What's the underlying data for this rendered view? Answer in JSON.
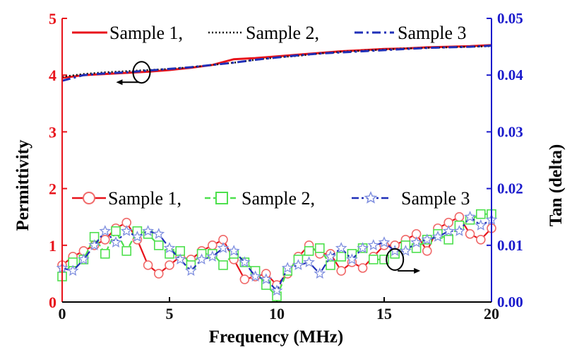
{
  "chart_data": {
    "type": "line",
    "title": "",
    "xlabel": "Frequency (MHz)",
    "ylabel_left": "Permittivity",
    "ylabel_right": "Tan (delta)",
    "xlim": [
      0,
      20
    ],
    "ylim_left": [
      0,
      5
    ],
    "ylim_right": [
      0,
      0.05
    ],
    "x_ticks": [
      "0",
      "5",
      "10",
      "15",
      "20"
    ],
    "y_left_ticks": [
      "0",
      "1",
      "2",
      "3",
      "4",
      "5"
    ],
    "y_right_ticks": [
      "0.00",
      "0.01",
      "0.02",
      "0.03",
      "0.04",
      "0.05"
    ],
    "grid": false,
    "colors": {
      "left_axis": "#e8131b",
      "right_axis": "#1a1acc",
      "sample1": "#e8131b",
      "sample2_perm": "#111111",
      "sample2_tan": "#4ee04e",
      "sample3": "#1f2fb8"
    },
    "permittivity_series": [
      {
        "name": "Sample 1",
        "x": [
          0,
          1,
          2,
          3,
          4,
          5,
          6,
          7,
          8,
          9,
          10,
          11,
          12,
          13,
          14,
          15,
          16,
          17,
          18,
          19,
          20
        ],
        "values": [
          3.95,
          4.0,
          4.02,
          4.04,
          4.06,
          4.09,
          4.13,
          4.18,
          4.28,
          4.3,
          4.33,
          4.36,
          4.39,
          4.42,
          4.44,
          4.46,
          4.47,
          4.49,
          4.5,
          4.51,
          4.53
        ]
      },
      {
        "name": "Sample 2",
        "x": [
          0,
          1,
          2,
          3,
          4,
          5,
          6,
          7,
          8,
          9,
          10,
          11,
          12,
          13,
          14,
          15,
          16,
          17,
          18,
          19,
          20
        ],
        "values": [
          3.97,
          4.02,
          4.05,
          4.07,
          4.09,
          4.11,
          4.14,
          4.18,
          4.22,
          4.27,
          4.31,
          4.34,
          4.38,
          4.41,
          4.43,
          4.45,
          4.47,
          4.48,
          4.49,
          4.5,
          4.51
        ]
      },
      {
        "name": "Sample 3",
        "x": [
          0,
          1,
          2,
          3,
          4,
          5,
          6,
          7,
          8,
          9,
          10,
          11,
          12,
          13,
          14,
          15,
          16,
          17,
          18,
          19,
          20
        ],
        "values": [
          3.9,
          4.0,
          4.03,
          4.05,
          4.08,
          4.11,
          4.14,
          4.18,
          4.22,
          4.27,
          4.31,
          4.35,
          4.38,
          4.4,
          4.42,
          4.44,
          4.46,
          4.48,
          4.49,
          4.5,
          4.52
        ]
      }
    ],
    "tan_series": [
      {
        "name": "Sample 1",
        "x": [
          0,
          0.5,
          1,
          1.5,
          2,
          2.5,
          3,
          3.5,
          4,
          4.5,
          5,
          5.5,
          6,
          6.5,
          7,
          7.5,
          8,
          8.5,
          9,
          9.5,
          10,
          10.5,
          11,
          11.5,
          12,
          12.5,
          13,
          13.5,
          14,
          14.5,
          15,
          15.5,
          16,
          16.5,
          17,
          17.5,
          18,
          18.5,
          19,
          19.5,
          20
        ],
        "values": [
          0.0065,
          0.008,
          0.009,
          0.01,
          0.011,
          0.013,
          0.014,
          0.011,
          0.0065,
          0.005,
          0.0065,
          0.008,
          0.0075,
          0.009,
          0.01,
          0.011,
          0.0075,
          0.004,
          0.0045,
          0.005,
          0.003,
          0.005,
          0.008,
          0.01,
          0.0085,
          0.0085,
          0.0055,
          0.007,
          0.006,
          0.008,
          0.01,
          0.01,
          0.011,
          0.012,
          0.009,
          0.013,
          0.014,
          0.015,
          0.012,
          0.011,
          0.013
        ]
      },
      {
        "name": "Sample 2",
        "x": [
          0,
          0.5,
          1,
          1.5,
          2,
          2.5,
          3,
          3.5,
          4,
          4.5,
          5,
          5.5,
          6,
          6.5,
          7,
          7.5,
          8,
          8.5,
          9,
          9.5,
          10,
          10.5,
          11,
          11.5,
          12,
          12.5,
          13,
          13.5,
          14,
          14.5,
          15,
          15.5,
          16,
          16.5,
          17,
          17.5,
          18,
          18.5,
          19,
          19.5,
          20
        ],
        "values": [
          0.0045,
          0.007,
          0.0075,
          0.0115,
          0.0085,
          0.0125,
          0.009,
          0.0125,
          0.012,
          0.01,
          0.0085,
          0.009,
          0.0065,
          0.0085,
          0.0085,
          0.0065,
          0.0085,
          0.007,
          0.0055,
          0.003,
          0.001,
          0.0055,
          0.0075,
          0.009,
          0.0095,
          0.0065,
          0.008,
          0.0085,
          0.0095,
          0.0075,
          0.0075,
          0.0085,
          0.01,
          0.0095,
          0.011,
          0.012,
          0.011,
          0.0135,
          0.0145,
          0.0155,
          0.0155
        ]
      },
      {
        "name": "Sample 3",
        "x": [
          0,
          0.5,
          1,
          1.5,
          2,
          2.5,
          3,
          3.5,
          4,
          4.5,
          5,
          5.5,
          6,
          6.5,
          7,
          7.5,
          8,
          8.5,
          9,
          9.5,
          10,
          10.5,
          11,
          11.5,
          12,
          12.5,
          13,
          13.5,
          14,
          14.5,
          15,
          15.5,
          16,
          16.5,
          17,
          17.5,
          18,
          18.5,
          19,
          19.5,
          20
        ],
        "values": [
          0.006,
          0.0055,
          0.0075,
          0.01,
          0.0125,
          0.0105,
          0.0125,
          0.0115,
          0.0125,
          0.012,
          0.0095,
          0.0075,
          0.0055,
          0.0075,
          0.008,
          0.0095,
          0.009,
          0.007,
          0.0045,
          0.004,
          0.002,
          0.006,
          0.0065,
          0.007,
          0.005,
          0.008,
          0.0095,
          0.0075,
          0.0095,
          0.01,
          0.0105,
          0.009,
          0.009,
          0.0105,
          0.011,
          0.0115,
          0.0125,
          0.0125,
          0.015,
          0.0135,
          0.0145
        ]
      }
    ],
    "legend_permittivity": [
      "Sample 1,",
      "Sample 2,",
      "Sample 3"
    ],
    "legend_tan": [
      "Sample 1,",
      "Sample 2,",
      "Sample 3"
    ],
    "annotations": [
      {
        "shape": "ellipse",
        "x": 3.7,
        "y_left": 4.05,
        "arrow": "left"
      },
      {
        "shape": "ellipse",
        "x": 15.5,
        "y_left": 0.75,
        "arrow": "right"
      }
    ]
  }
}
